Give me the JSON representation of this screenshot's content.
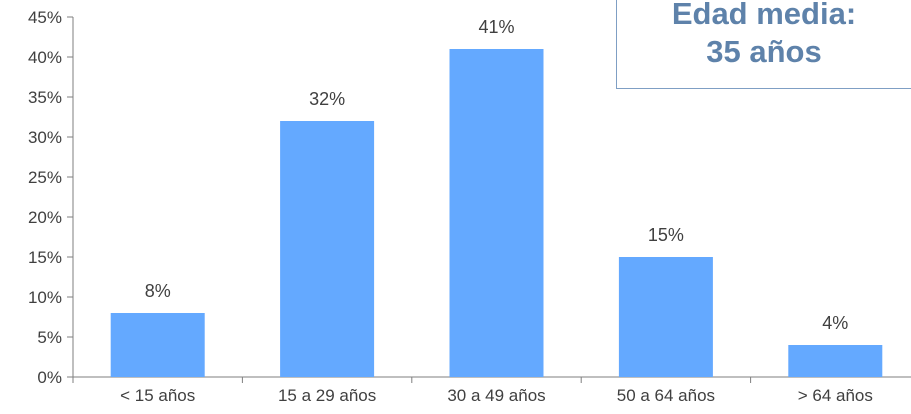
{
  "chart_data": {
    "type": "bar",
    "categories": [
      "< 15 años",
      "15 a 29 años",
      "30 a 49 años",
      "50 a 64 años",
      "> 64 años"
    ],
    "values": [
      8,
      32,
      41,
      15,
      4
    ],
    "data_labels": [
      "8%",
      "32%",
      "41%",
      "15%",
      "4%"
    ],
    "value_unit": "%",
    "ylim": [
      0,
      45
    ],
    "yticks": [
      0,
      5,
      10,
      15,
      20,
      25,
      30,
      35,
      40,
      45
    ],
    "ytick_labels": [
      "0%",
      "5%",
      "10%",
      "15%",
      "20%",
      "25%",
      "30%",
      "35%",
      "40%",
      "45%"
    ],
    "grid": false,
    "bar_color": "#64a9ff",
    "axis_color": "#7f7f7f"
  },
  "callout": {
    "line1": "Edad media:",
    "line2": "35 años",
    "text_color": "#5e82aa",
    "border_color": "#7f9fc4"
  }
}
